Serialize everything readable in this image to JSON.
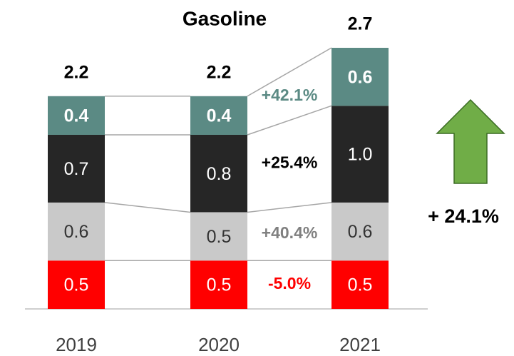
{
  "chart_data": {
    "type": "stacked_bar",
    "title": "Gasoline",
    "categories": [
      "2019",
      "2020",
      "2021"
    ],
    "series": [
      {
        "color": "#ff0000",
        "label_color": "#ffffff",
        "values": [
          0.5,
          0.5,
          0.5
        ],
        "growth": "-5.0%",
        "growth_color": "#ff0000"
      },
      {
        "color": "#c9c9c9",
        "label_color": "#333333",
        "values": [
          0.6,
          0.5,
          0.6
        ],
        "growth": "+40.4%",
        "growth_color": "#808080"
      },
      {
        "color": "#262626",
        "label_color": "#ffffff",
        "values": [
          0.7,
          0.8,
          1.0
        ],
        "value_labels": [
          "0.7",
          "0.8",
          "1.0"
        ],
        "growth": "+25.4%",
        "growth_color": "#000000"
      },
      {
        "color": "#5b8a84",
        "label_color": "#ffffff",
        "values": [
          0.4,
          0.4,
          0.6
        ],
        "growth": "+42.1%",
        "growth_color": "#5b8a84"
      }
    ],
    "totals": [
      2.2,
      2.2,
      2.7
    ],
    "overall_growth": "+ 24.1%",
    "arrow_color": "#70ad47"
  }
}
